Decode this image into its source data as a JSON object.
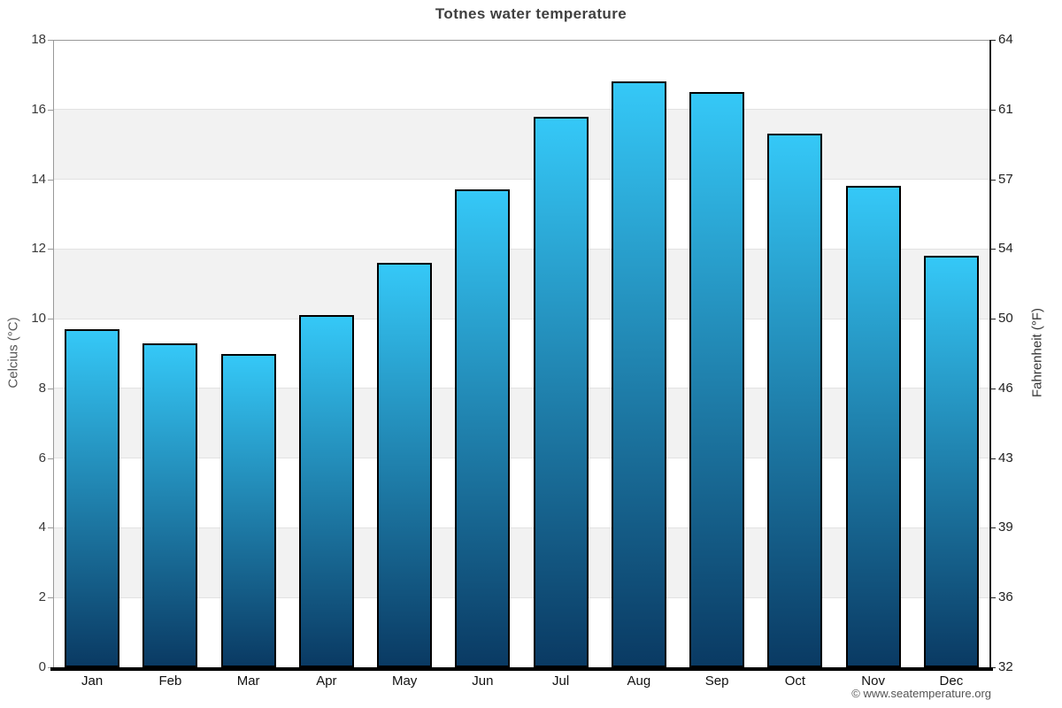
{
  "title": "Totnes water temperature",
  "footer": {
    "credit": "© www.seatemperature.org"
  },
  "chart_data": {
    "type": "bar",
    "title": "Totnes water temperature",
    "categories": [
      "Jan",
      "Feb",
      "Mar",
      "Apr",
      "May",
      "Jun",
      "Jul",
      "Aug",
      "Sep",
      "Oct",
      "Nov",
      "Dec"
    ],
    "values": [
      9.7,
      9.3,
      9.0,
      10.1,
      11.6,
      13.7,
      15.8,
      16.8,
      16.5,
      15.3,
      13.8,
      11.8
    ],
    "unit": "°C",
    "ylabel_left": "Celcius (°C)",
    "ylabel_right": "Fahrenheit (°F)",
    "ylim": [
      0,
      18
    ],
    "y_ticks_celsius": [
      0,
      2,
      4,
      6,
      8,
      10,
      12,
      14,
      16,
      18
    ],
    "y_ticks_fahrenheit_labels": [
      "32",
      "36",
      "39",
      "43",
      "46",
      "50",
      "54",
      "57",
      "61",
      "64"
    ],
    "grid": "alternating horizontal bands every 2 °C",
    "legend": false,
    "colors": {
      "bar_gradient_top": "#35c8f7",
      "bar_gradient_bottom": "#0a3a63",
      "bar_border": "#000000",
      "band_fill": "#f2f2f2",
      "gridline": "#e2e2e2",
      "plot_top_line": "#999999",
      "axis_left": "#999999",
      "axis_right": "#222222",
      "axis_bottom": "#000000",
      "title_color": "#3f3f3f",
      "footer_color": "#555555"
    }
  }
}
